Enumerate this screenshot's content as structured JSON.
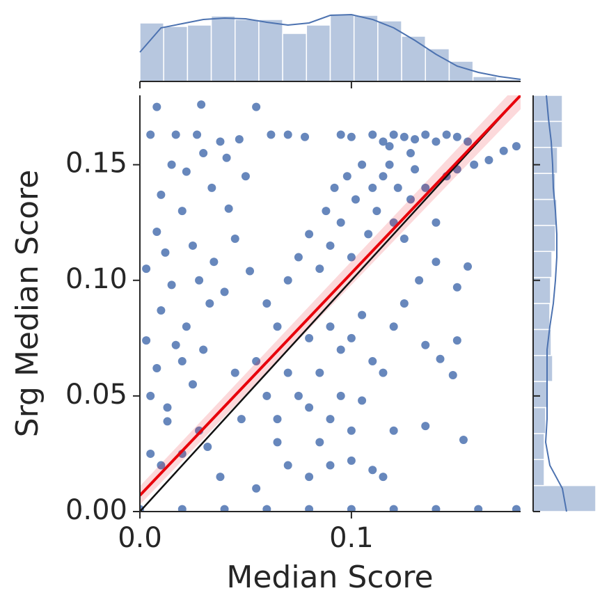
{
  "chart_data": {
    "type": "scatter",
    "x_label": "Median Score",
    "y_label": "Srg Median Score",
    "color": "#4c72b0",
    "xlim": [
      0,
      0.18
    ],
    "ylim": [
      0,
      0.18
    ],
    "xticks": [
      {
        "value": 0,
        "label": "0.0"
      },
      0.1
    ],
    "yticks": [
      {
        "value": 0,
        "label": "0.00"
      },
      0.05,
      {
        "value": 0.1,
        "label": "0.10"
      },
      0.15
    ],
    "x": [
      0.062,
      0.07,
      0.078,
      0.095,
      0.1,
      0.11,
      0.115,
      0.12,
      0.125,
      0.13,
      0.135,
      0.14,
      0.145,
      0.15,
      0.155,
      0.118,
      0.128,
      0.008,
      0.029,
      0.055,
      0.005,
      0.017,
      0.027,
      0.038,
      0.047,
      0.015,
      0.03,
      0.041,
      0.022,
      0.01,
      0.034,
      0.05,
      0.02,
      0.042,
      0.008,
      0.012,
      0.025,
      0.035,
      0.045,
      0.003,
      0.015,
      0.028,
      0.04,
      0.052,
      0.01,
      0.022,
      0.033,
      0.003,
      0.017,
      0.03,
      0.008,
      0.02,
      0.005,
      0.013,
      0.025,
      0.013,
      0.028,
      0.005,
      0.02,
      0.01,
      0.032,
      0.045,
      0.055,
      0.048,
      0.06,
      0.038,
      0.055,
      0.065,
      0.07,
      0.08,
      0.09,
      0.1,
      0.11,
      0.115,
      0.12,
      0.135,
      0.153,
      0.148,
      0.142,
      0.15,
      0.135,
      0.06,
      0.065,
      0.07,
      0.075,
      0.08,
      0.085,
      0.088,
      0.09,
      0.092,
      0.095,
      0.098,
      0.1,
      0.102,
      0.105,
      0.108,
      0.11,
      0.112,
      0.115,
      0.118,
      0.12,
      0.122,
      0.125,
      0.128,
      0.13,
      0.135,
      0.14,
      0.145,
      0.15,
      0.158,
      0.165,
      0.172,
      0.178,
      0.132,
      0.14,
      0.15,
      0.155,
      0.09,
      0.095,
      0.1,
      0.105,
      0.11,
      0.115,
      0.12,
      0.125,
      0.085,
      0.08,
      0.075,
      0.07,
      0.095,
      0.105,
      0.09,
      0.1,
      0.085,
      0.08,
      0.065,
      0,
      0.02,
      0.04,
      0.06,
      0.08,
      0.1,
      0.12,
      0.14,
      0.16,
      0.178
    ],
    "y": [
      0.163,
      0.163,
      0.162,
      0.163,
      0.162,
      0.163,
      0.16,
      0.163,
      0.162,
      0.161,
      0.163,
      0.16,
      0.163,
      0.162,
      0.16,
      0.158,
      0.155,
      0.175,
      0.176,
      0.175,
      0.163,
      0.163,
      0.163,
      0.16,
      0.161,
      0.15,
      0.155,
      0.153,
      0.147,
      0.137,
      0.14,
      0.145,
      0.13,
      0.131,
      0.121,
      0.112,
      0.115,
      0.108,
      0.118,
      0.105,
      0.098,
      0.1,
      0.095,
      0.104,
      0.087,
      0.08,
      0.09,
      0.074,
      0.072,
      0.07,
      0.062,
      0.065,
      0.05,
      0.045,
      0.055,
      0.039,
      0.035,
      0.025,
      0.025,
      0.02,
      0.028,
      0.06,
      0.065,
      0.04,
      0.05,
      0.015,
      0.01,
      0.03,
      0.02,
      0.015,
      0.02,
      0.022,
      0.018,
      0.015,
      0.035,
      0.037,
      0.031,
      0.059,
      0.066,
      0.074,
      0.072,
      0.09,
      0.08,
      0.1,
      0.11,
      0.12,
      0.105,
      0.13,
      0.115,
      0.14,
      0.125,
      0.145,
      0.11,
      0.135,
      0.15,
      0.12,
      0.14,
      0.13,
      0.145,
      0.15,
      0.125,
      0.14,
      0.118,
      0.135,
      0.148,
      0.14,
      0.125,
      0.145,
      0.148,
      0.15,
      0.152,
      0.156,
      0.158,
      0.1,
      0.108,
      0.097,
      0.106,
      0.08,
      0.07,
      0.075,
      0.085,
      0.065,
      0.06,
      0.08,
      0.09,
      0.06,
      0.075,
      0.05,
      0.06,
      0.05,
      0.048,
      0.04,
      0.035,
      0.03,
      0.045,
      0.04,
      0.001,
      0.001,
      0.001,
      0.001,
      0.001,
      0.001,
      0.001,
      0.001,
      0.001,
      0.001
    ],
    "fit": {
      "color": "#e8000b",
      "x": [
        0,
        0.18
      ],
      "y": [
        0.007,
        0.18
      ],
      "ci_lower": [
        0.003,
        0.174
      ],
      "ci_upper": [
        0.011,
        0.186
      ]
    },
    "identity": {
      "color": "#111111",
      "x": [
        0,
        0.18
      ],
      "y": [
        0,
        0.18
      ]
    },
    "marginal_x": {
      "type": "histogram",
      "bins": [
        0,
        0.01125,
        0.0225,
        0.03375,
        0.045,
        0.05625,
        0.0675,
        0.07875,
        0.09,
        0.10125,
        0.1125,
        0.12375,
        0.135,
        0.14625,
        0.1575,
        0.16875,
        0.18
      ],
      "counts": [
        84,
        79,
        81,
        94,
        89,
        89,
        69,
        81,
        97,
        95,
        87,
        65,
        47,
        29,
        7,
        3
      ],
      "ylim": [
        0,
        100
      ],
      "kde": {
        "at": [
          0,
          0.01,
          0.02,
          0.03,
          0.04,
          0.05,
          0.06,
          0.07,
          0.08,
          0.09,
          0.1,
          0.11,
          0.12,
          0.13,
          0.14,
          0.15,
          0.16,
          0.17,
          0.18
        ],
        "values": [
          42,
          77,
          83,
          89,
          91,
          90,
          85,
          81,
          84,
          95,
          96,
          89,
          77,
          59,
          39,
          22,
          13,
          7,
          3
        ]
      }
    },
    "marginal_y": {
      "type": "histogram",
      "bins": [
        0,
        0.01125,
        0.0225,
        0.03375,
        0.045,
        0.05625,
        0.0675,
        0.07875,
        0.09,
        0.10125,
        0.1125,
        0.12375,
        0.135,
        0.14625,
        0.1575,
        0.16875,
        0.18
      ],
      "counts": [
        90,
        16,
        16,
        18,
        22,
        28,
        26,
        24,
        25,
        27,
        32,
        34,
        32,
        35,
        42,
        42
      ],
      "xlim": [
        0,
        100
      ],
      "kde": {
        "at": [
          0,
          0.01,
          0.02,
          0.03,
          0.04,
          0.05,
          0.06,
          0.07,
          0.08,
          0.09,
          0.1,
          0.11,
          0.12,
          0.13,
          0.14,
          0.15,
          0.16,
          0.17,
          0.18
        ],
        "values": [
          48,
          42,
          24,
          18,
          20,
          20,
          20,
          20,
          24,
          29,
          32,
          34,
          34,
          32,
          29,
          28,
          26,
          22,
          19
        ]
      }
    }
  }
}
